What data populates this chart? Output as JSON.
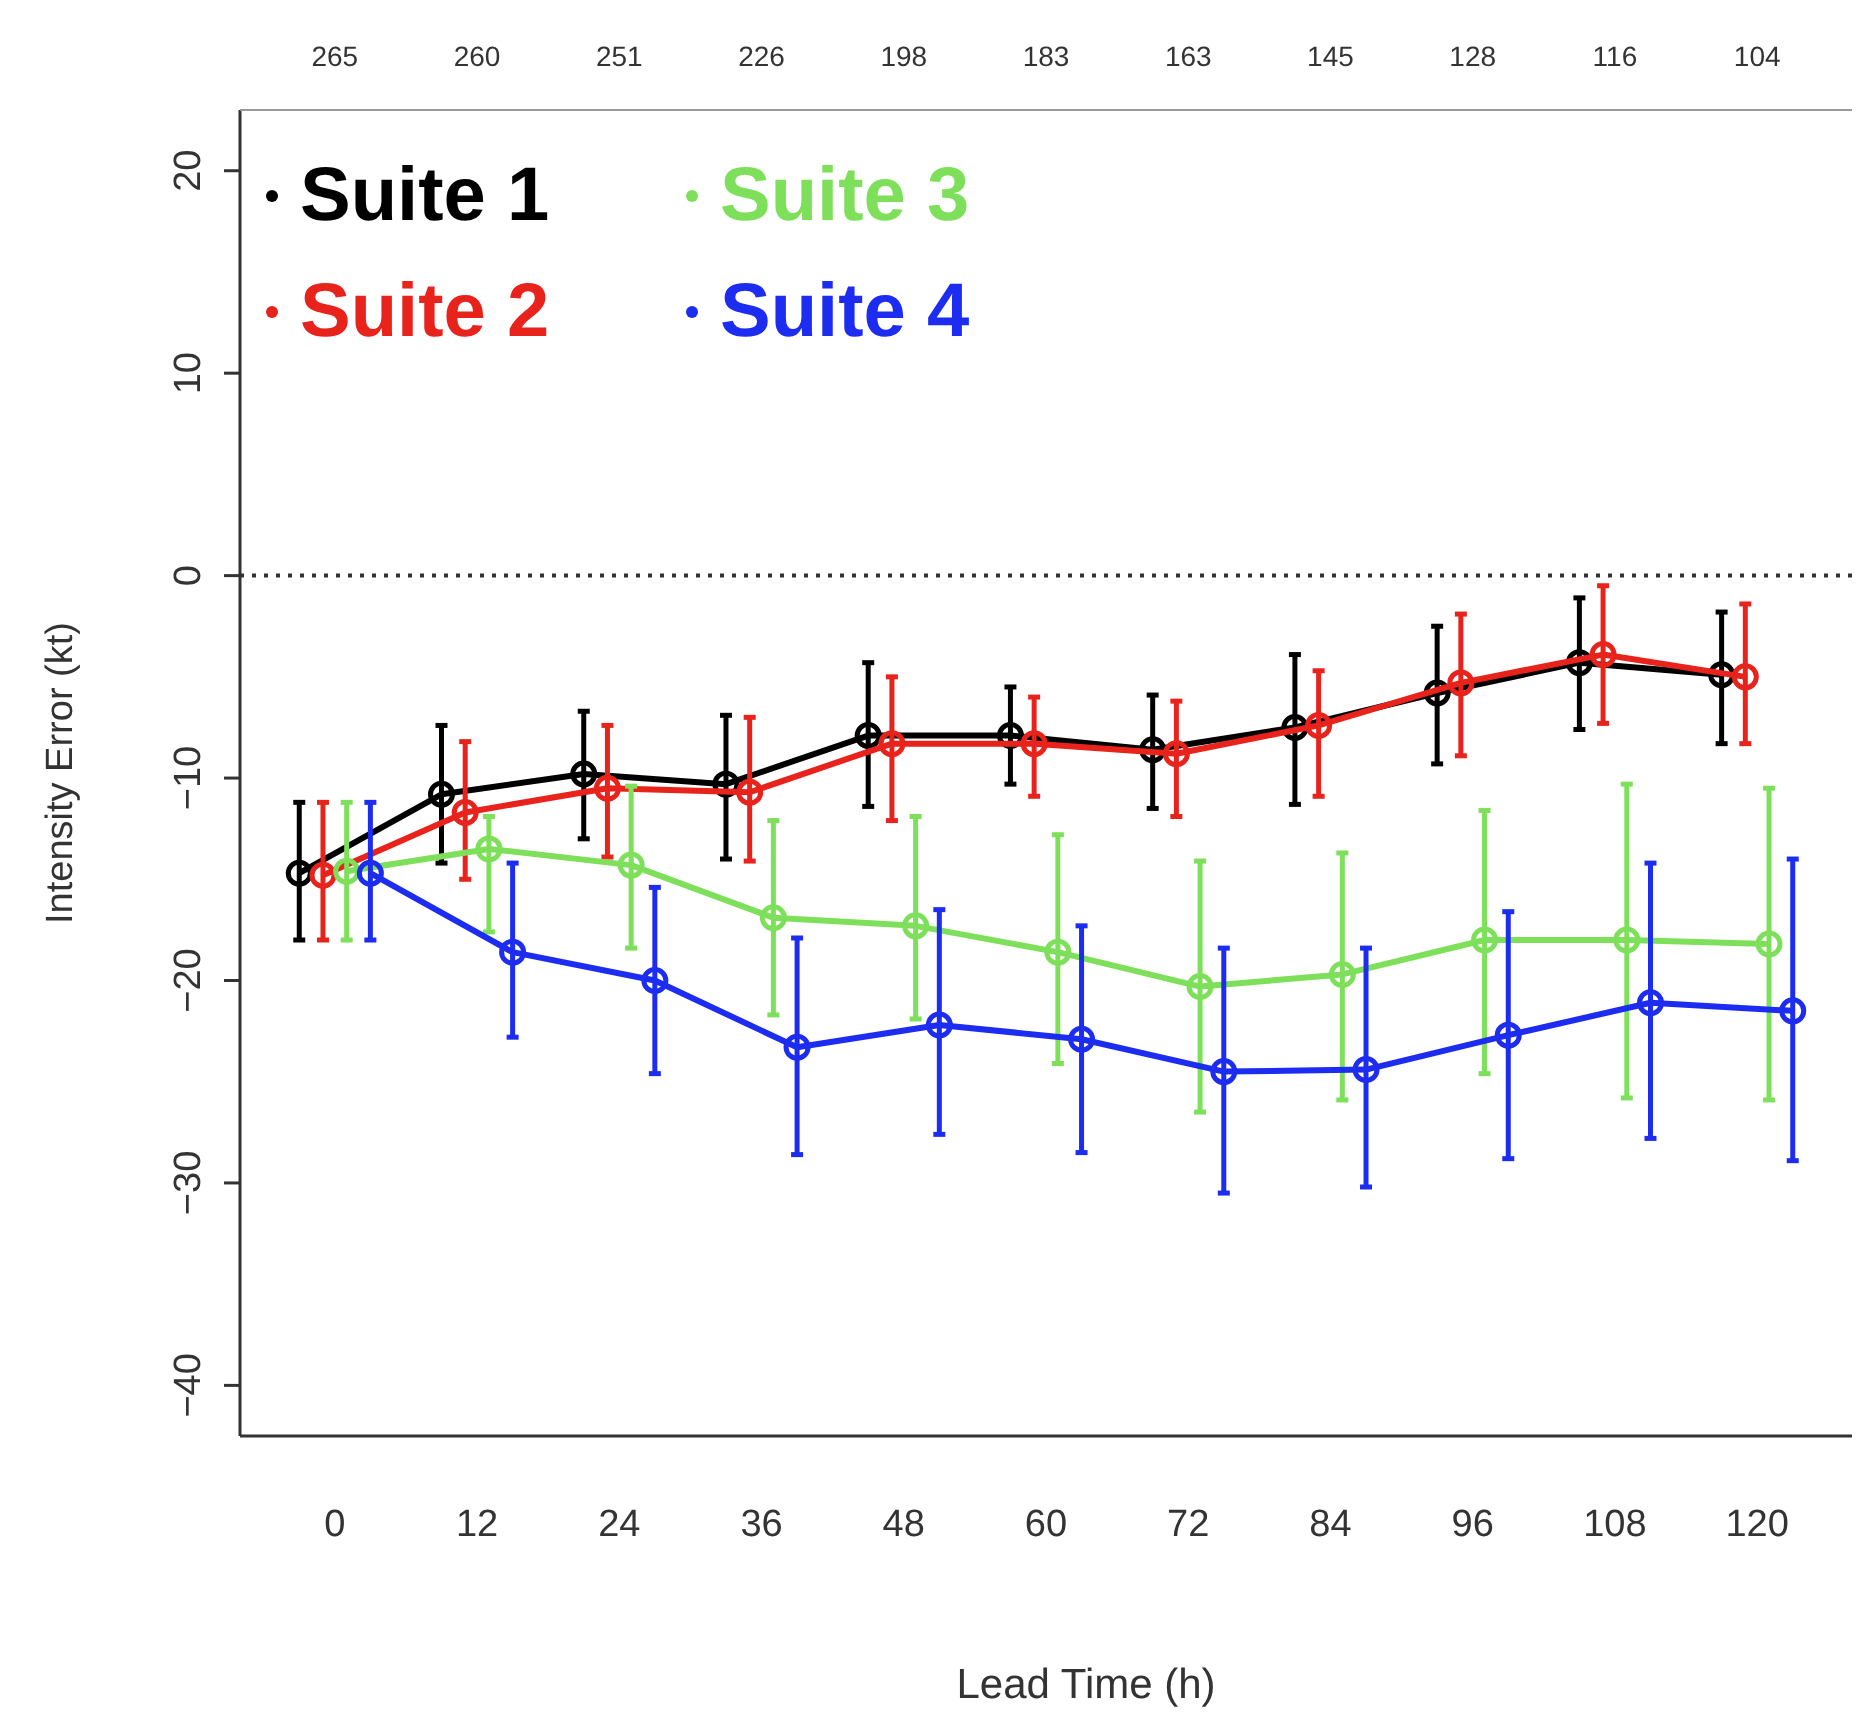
{
  "chart_data": {
    "type": "line",
    "xlabel": "Lead Time (h)",
    "ylabel": "Intensity Error (kt)",
    "xlim": [
      -8,
      128
    ],
    "xticks": [
      0,
      12,
      24,
      36,
      48,
      60,
      72,
      84,
      96,
      108,
      120
    ],
    "annotations": [
      "265",
      "260",
      "251",
      "226",
      "198",
      "183",
      "163",
      "145",
      "128",
      "116",
      "104"
    ],
    "ylim": [
      -42.5,
      23
    ],
    "yticks": [
      20,
      10,
      0,
      -10,
      -20,
      -30,
      -40
    ],
    "grid": false,
    "legend": "top left",
    "marker": "circle",
    "line_style": "solid",
    "ref_lines": [
      {
        "axis": "y",
        "value": 0,
        "line_style": "dotted",
        "color": "#333333"
      }
    ],
    "series": [
      {
        "name": "Suite 1",
        "color": "#000000",
        "x": [
          -3,
          9,
          21,
          33,
          45,
          57,
          69,
          81,
          93,
          105,
          117
        ],
        "values": [
          -14.7,
          -10.8,
          -9.8,
          -10.3,
          -7.9,
          -7.9,
          -8.6,
          -7.5,
          -5.8,
          -4.3,
          -4.9
        ],
        "errors": [
          [
            -18,
            -11.2
          ],
          [
            -14.2,
            -7.4
          ],
          [
            -13,
            -6.7
          ],
          [
            -14,
            -6.9
          ],
          [
            -11.4,
            -4.3
          ],
          [
            -10.3,
            -5.5
          ],
          [
            -11.5,
            -5.9
          ],
          [
            -11.3,
            -3.9
          ],
          [
            -9.3,
            -2.5
          ],
          [
            -7.6,
            -1.1
          ],
          [
            -8.3,
            -1.8
          ]
        ]
      },
      {
        "name": "Suite 2",
        "color": "#e8231c",
        "x": [
          -1,
          11,
          23,
          35,
          47,
          59,
          71,
          83,
          95,
          107,
          119
        ],
        "values": [
          -14.8,
          -11.7,
          -10.5,
          -10.7,
          -8.3,
          -8.3,
          -8.8,
          -7.4,
          -5.3,
          -3.9,
          -5
        ],
        "errors": [
          [
            -18,
            -11.2
          ],
          [
            -15,
            -8.2
          ],
          [
            -13.9,
            -7.4
          ],
          [
            -14.1,
            -7
          ],
          [
            -12.1,
            -5
          ],
          [
            -10.9,
            -6
          ],
          [
            -11.9,
            -6.2
          ],
          [
            -10.9,
            -4.7
          ],
          [
            -8.9,
            -1.9
          ],
          [
            -7.3,
            -0.5
          ],
          [
            -8.3,
            -1.4
          ]
        ]
      },
      {
        "name": "Suite 3",
        "color": "#7ee05a",
        "x": [
          1,
          13,
          25,
          37,
          49,
          61,
          73,
          85,
          97,
          109,
          121
        ],
        "values": [
          -14.6,
          -13.5,
          -14.3,
          -16.9,
          -17.3,
          -18.6,
          -20.3,
          -19.7,
          -18,
          -18,
          -18.2
        ],
        "errors": [
          [
            -18,
            -11.2
          ],
          [
            -17.6,
            -11.9
          ],
          [
            -18.4,
            -10.4
          ],
          [
            -21.7,
            -12.1
          ],
          [
            -21.9,
            -11.9
          ],
          [
            -24.1,
            -12.8
          ],
          [
            -26.5,
            -14.1
          ],
          [
            -25.9,
            -13.7
          ],
          [
            -24.6,
            -11.6
          ],
          [
            -25.8,
            -10.3
          ],
          [
            -25.9,
            -10.5
          ]
        ]
      },
      {
        "name": "Suite 4",
        "color": "#1c2cf0",
        "x": [
          3,
          15,
          27,
          39,
          51,
          63,
          75,
          87,
          99,
          111,
          123
        ],
        "values": [
          -14.7,
          -18.6,
          -20,
          -23.3,
          -22.2,
          -22.9,
          -24.5,
          -24.4,
          -22.7,
          -21.1,
          -21.5
        ],
        "errors": [
          [
            -18,
            -11.2
          ],
          [
            -22.8,
            -14.2
          ],
          [
            -24.6,
            -15.4
          ],
          [
            -28.6,
            -17.9
          ],
          [
            -27.6,
            -16.5
          ],
          [
            -28.5,
            -17.3
          ],
          [
            -30.5,
            -18.4
          ],
          [
            -30.2,
            -18.4
          ],
          [
            -28.8,
            -16.6
          ],
          [
            -27.8,
            -14.2
          ],
          [
            -28.9,
            -14
          ]
        ]
      }
    ]
  }
}
